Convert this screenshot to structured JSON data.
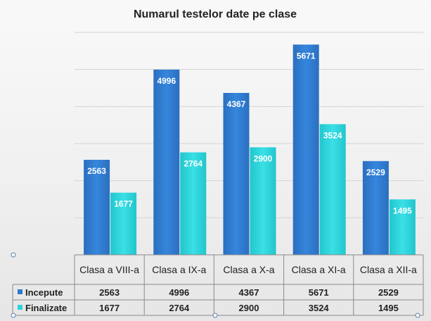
{
  "chart_data": {
    "type": "bar",
    "title": "Numarul testelor date pe clase",
    "categories": [
      "Clasa a  VIII-a",
      "Clasa a IX-a",
      "Clasa a X-a",
      "Clasa a XI-a",
      "Clasa a XII-a"
    ],
    "series": [
      {
        "name": "Incepute",
        "values": [
          2563,
          4996,
          4367,
          5671,
          2529
        ],
        "color": "#2e78cc"
      },
      {
        "name": "Finalizate",
        "values": [
          1677,
          2764,
          2900,
          3524,
          1495
        ],
        "color": "#2ed3da"
      }
    ],
    "ylim": [
      0,
      6000
    ],
    "grid": true,
    "data_table": true,
    "legend": "data-table"
  }
}
